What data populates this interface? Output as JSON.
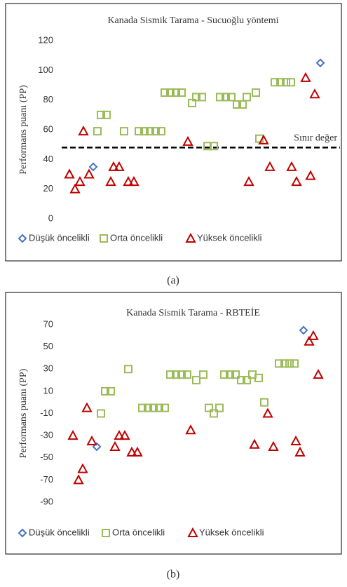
{
  "chart_data": [
    {
      "type": "scatter",
      "title": "Kanada  Sismik Tarama - Sucuoğlu yöntemi",
      "ylabel": "Performans puanı (PP)",
      "caption": "(a)",
      "xlim": [
        0,
        375
      ],
      "ylim": [
        0,
        120
      ],
      "yticks": [
        0,
        20,
        40,
        60,
        80,
        100,
        120
      ],
      "grid": false,
      "legend": "bottom",
      "threshold": {
        "value": 48,
        "label": "Sınır değer"
      },
      "series": [
        {
          "name": "Düşük öncelikli",
          "color": "#4472c4",
          "marker": "diamond",
          "x": [
            45,
            369
          ],
          "values": [
            35,
            105
          ]
        },
        {
          "name": "Orta öncelikli",
          "color": "#9bbb59",
          "marker": "square",
          "x": [
            51,
            56,
            64,
            89,
            110,
            118,
            126,
            134,
            142,
            147,
            155,
            163,
            171,
            186,
            192,
            200,
            208,
            217,
            226,
            234,
            242,
            250,
            258,
            264,
            277,
            282,
            304,
            312,
            320,
            327
          ],
          "values": [
            59,
            70,
            70,
            59,
            59,
            59,
            59,
            59,
            59,
            85,
            85,
            85,
            85,
            78,
            82,
            82,
            49,
            49,
            82,
            82,
            82,
            77,
            77,
            82,
            85,
            54,
            92,
            92,
            92,
            92
          ]
        },
        {
          "name": "Yüksek öncelikli",
          "color": "#c00000",
          "marker": "triangle",
          "x": [
            11,
            19,
            26,
            31,
            39,
            74,
            82,
            70,
            95,
            103,
            180,
            267,
            288,
            297,
            328,
            335,
            348,
            355,
            361
          ],
          "values": [
            30,
            20,
            25,
            59,
            30,
            35,
            35,
            25,
            25,
            25,
            52,
            25,
            53,
            35,
            35,
            25,
            95,
            29,
            84
          ]
        }
      ]
    },
    {
      "type": "scatter",
      "title": "Kanada  Sismik Tarama - RBTEİE",
      "ylabel": "Performans puanı (PP)",
      "caption": "(b)",
      "xlim": [
        0,
        375
      ],
      "ylim": [
        -90,
        70
      ],
      "yticks": [
        -90,
        -70,
        -50,
        -30,
        -10,
        10,
        30,
        50,
        70
      ],
      "grid": false,
      "legend": "bottom",
      "series": [
        {
          "name": "Düşük öncelikli",
          "color": "#4472c4",
          "marker": "diamond",
          "x": [
            50,
            345
          ],
          "values": [
            -40,
            65
          ]
        },
        {
          "name": "Orta öncelikli",
          "color": "#9bbb59",
          "marker": "square",
          "x": [
            56,
            62,
            70,
            95,
            115,
            123,
            131,
            139,
            147,
            155,
            163,
            171,
            179,
            192,
            202,
            210,
            217,
            225,
            232,
            240,
            248,
            256,
            264,
            272,
            281,
            289,
            310,
            318,
            325,
            332
          ],
          "values": [
            -10,
            10,
            10,
            30,
            -5,
            -5,
            -5,
            -5,
            -5,
            25,
            25,
            25,
            25,
            20,
            25,
            -5,
            -10,
            -5,
            25,
            25,
            25,
            20,
            20,
            25,
            22,
            0,
            35,
            35,
            35,
            35
          ]
        },
        {
          "name": "Yüksek öncelikli",
          "color": "#c00000",
          "marker": "triangle",
          "x": [
            16,
            24,
            30,
            36,
            43,
            76,
            82,
            90,
            100,
            108,
            184,
            275,
            294,
            302,
            334,
            340,
            353,
            359,
            366
          ],
          "values": [
            -30,
            -70,
            -60,
            -5,
            -35,
            -40,
            -30,
            -30,
            -45,
            -45,
            -25,
            -38,
            -10,
            -40,
            -35,
            -45,
            55,
            60,
            25
          ]
        }
      ]
    }
  ]
}
